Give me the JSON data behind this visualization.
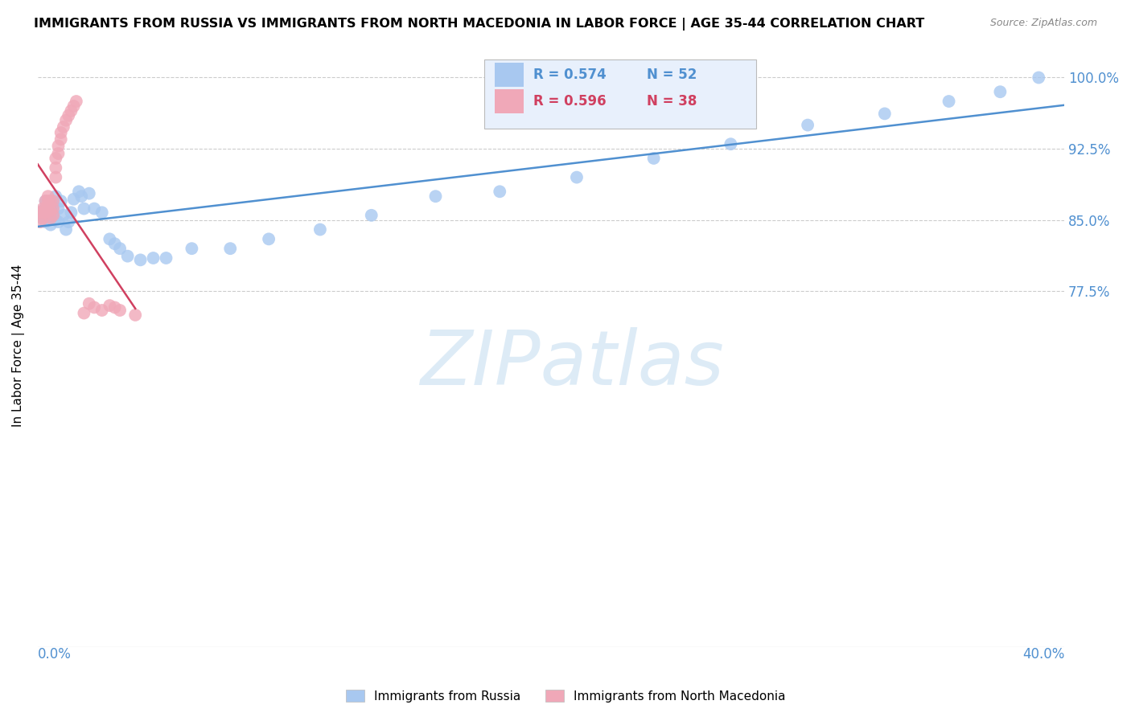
{
  "title": "IMMIGRANTS FROM RUSSIA VS IMMIGRANTS FROM NORTH MACEDONIA IN LABOR FORCE | AGE 35-44 CORRELATION CHART",
  "source": "Source: ZipAtlas.com",
  "ylabel": "In Labor Force | Age 35-44",
  "yaxis_ticks": [
    0.4,
    0.775,
    0.85,
    0.925,
    1.0
  ],
  "yaxis_labels": [
    "",
    "77.5%",
    "85.0%",
    "92.5%",
    "100.0%"
  ],
  "xmin": 0.0,
  "xmax": 0.4,
  "ymin": 0.4,
  "ymax": 1.035,
  "russia_R": 0.574,
  "russia_N": 52,
  "macedonia_R": 0.596,
  "macedonia_N": 38,
  "russia_color": "#a8c8f0",
  "macedonia_color": "#f0a8b8",
  "russia_line_color": "#5090d0",
  "macedonia_line_color": "#d04060",
  "legend_box_color": "#e8f0fc",
  "watermark_color": "#d8e8f5",
  "watermark": "ZIPatlas",
  "russia_x": [
    0.001,
    0.001,
    0.002,
    0.002,
    0.003,
    0.003,
    0.003,
    0.004,
    0.004,
    0.005,
    0.005,
    0.005,
    0.006,
    0.006,
    0.007,
    0.007,
    0.008,
    0.008,
    0.009,
    0.01,
    0.011,
    0.012,
    0.013,
    0.014,
    0.016,
    0.017,
    0.018,
    0.02,
    0.022,
    0.025,
    0.028,
    0.03,
    0.032,
    0.035,
    0.04,
    0.045,
    0.05,
    0.06,
    0.075,
    0.09,
    0.11,
    0.13,
    0.155,
    0.18,
    0.21,
    0.24,
    0.27,
    0.3,
    0.33,
    0.355,
    0.375,
    0.39
  ],
  "russia_y": [
    0.853,
    0.858,
    0.855,
    0.86,
    0.848,
    0.862,
    0.87,
    0.856,
    0.865,
    0.845,
    0.852,
    0.868,
    0.858,
    0.865,
    0.85,
    0.875,
    0.848,
    0.862,
    0.87,
    0.855,
    0.84,
    0.848,
    0.858,
    0.872,
    0.88,
    0.875,
    0.862,
    0.878,
    0.862,
    0.858,
    0.83,
    0.825,
    0.82,
    0.812,
    0.808,
    0.81,
    0.81,
    0.82,
    0.82,
    0.83,
    0.84,
    0.855,
    0.875,
    0.88,
    0.895,
    0.915,
    0.93,
    0.95,
    0.962,
    0.975,
    0.985,
    1.0
  ],
  "macedonia_x": [
    0.001,
    0.001,
    0.002,
    0.002,
    0.002,
    0.003,
    0.003,
    0.003,
    0.004,
    0.004,
    0.004,
    0.005,
    0.005,
    0.005,
    0.006,
    0.006,
    0.006,
    0.007,
    0.007,
    0.007,
    0.008,
    0.008,
    0.009,
    0.009,
    0.01,
    0.011,
    0.012,
    0.013,
    0.014,
    0.015,
    0.018,
    0.02,
    0.022,
    0.025,
    0.028,
    0.03,
    0.032,
    0.038
  ],
  "macedonia_y": [
    0.848,
    0.858,
    0.852,
    0.858,
    0.862,
    0.858,
    0.862,
    0.87,
    0.865,
    0.87,
    0.875,
    0.852,
    0.86,
    0.87,
    0.855,
    0.862,
    0.87,
    0.895,
    0.905,
    0.915,
    0.92,
    0.928,
    0.935,
    0.942,
    0.948,
    0.955,
    0.96,
    0.965,
    0.97,
    0.975,
    0.752,
    0.762,
    0.758,
    0.755,
    0.76,
    0.758,
    0.755,
    0.75
  ]
}
